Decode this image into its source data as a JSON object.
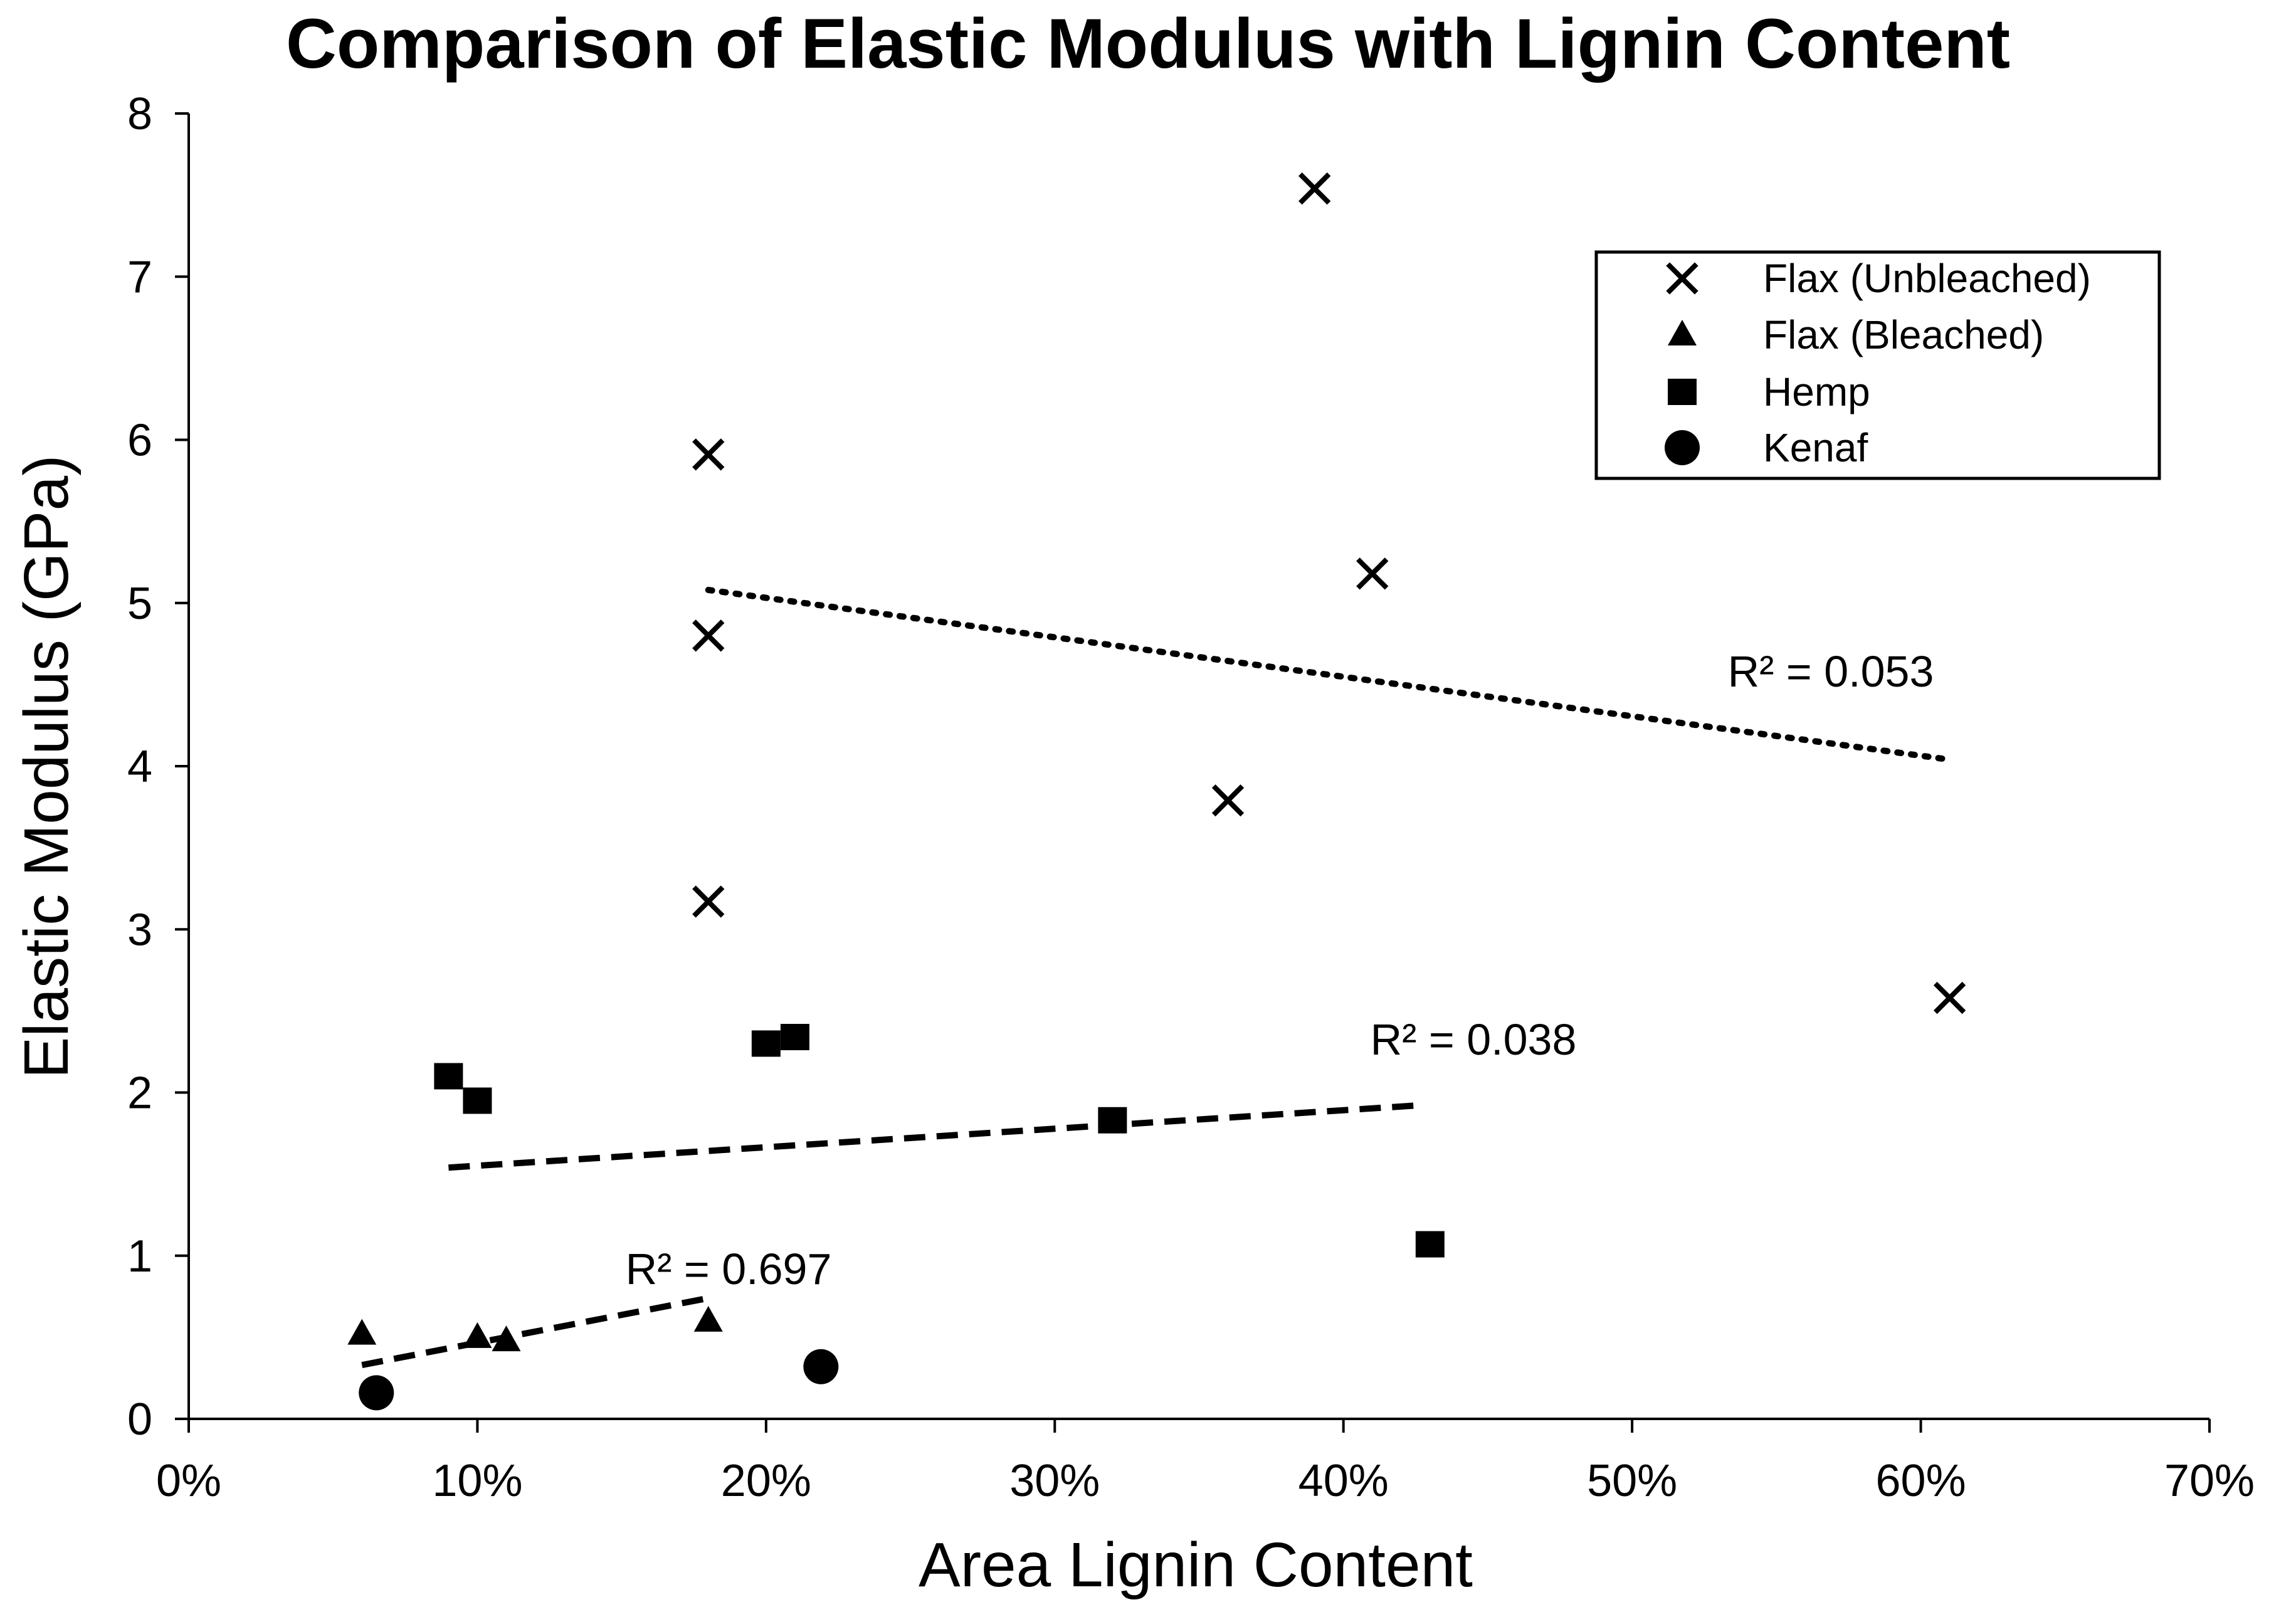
{
  "chart_data": {
    "type": "scatter",
    "title": "Comparison of Elastic Modulus with Lignin Content",
    "xlabel": "Area Lignin Content",
    "ylabel": "Elastic Modulus (GPa)",
    "xlim": [
      0,
      70
    ],
    "ylim": [
      0,
      8
    ],
    "x_ticks": [
      "0%",
      "10%",
      "20%",
      "30%",
      "40%",
      "50%",
      "60%",
      "70%"
    ],
    "y_ticks": [
      "0",
      "1",
      "2",
      "3",
      "4",
      "5",
      "6",
      "7",
      "8"
    ],
    "grid": false,
    "legend_position": "top-right",
    "series": [
      {
        "name": "Flax (Unbleached)",
        "marker": "x",
        "points": [
          [
            18,
            5.91
          ],
          [
            18,
            4.8
          ],
          [
            18,
            3.17
          ],
          [
            36,
            3.79
          ],
          [
            39,
            7.54
          ],
          [
            41,
            5.18
          ],
          [
            61,
            2.58
          ]
        ],
        "trendline": {
          "style": "dotted",
          "x": [
            18,
            61
          ],
          "y": [
            5.08,
            4.04
          ]
        },
        "r2_label": "R² = 0.053"
      },
      {
        "name": "Flax (Bleached)",
        "marker": "triangle",
        "points": [
          [
            6,
            0.52
          ],
          [
            10,
            0.5
          ],
          [
            11,
            0.48
          ],
          [
            18,
            0.6
          ]
        ],
        "trendline": {
          "style": "dashed",
          "x": [
            6,
            18
          ],
          "y": [
            0.33,
            0.74
          ]
        },
        "r2_label": "R² = 0.697"
      },
      {
        "name": "Hemp",
        "marker": "square",
        "points": [
          [
            9,
            2.1
          ],
          [
            10,
            1.95
          ],
          [
            20,
            2.3
          ],
          [
            21,
            2.34
          ],
          [
            32,
            1.83
          ],
          [
            43,
            1.07
          ]
        ],
        "trendline": {
          "style": "dashed",
          "x": [
            9,
            42.5
          ],
          "y": [
            1.54,
            1.92
          ]
        },
        "r2_label": "R² = 0.038"
      },
      {
        "name": "Kenaf",
        "marker": "circle",
        "points": [
          [
            6.5,
            0.16
          ],
          [
            21.9,
            0.32
          ]
        ]
      }
    ]
  }
}
